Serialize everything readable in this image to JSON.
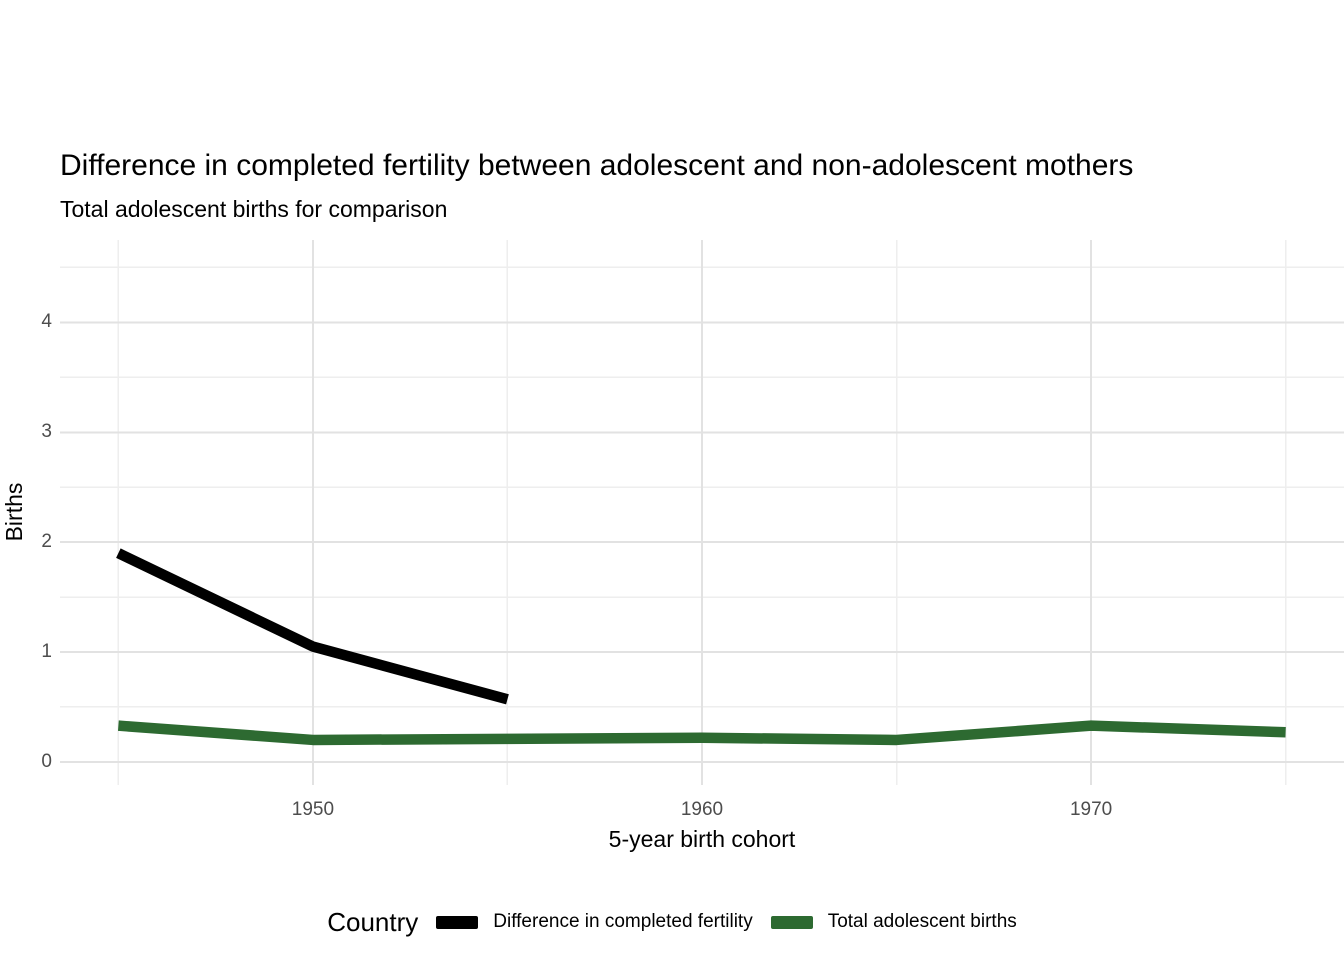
{
  "chart_data": {
    "type": "line",
    "title": "Difference in completed fertility between adolescent and non-adolescent mothers",
    "subtitle": "Total adolescent births for comparison",
    "xlabel": "5-year birth cohort",
    "ylabel": "Births",
    "legend_title": "Country",
    "legend_position": "bottom",
    "grid": "on",
    "x_ticks": [
      1950,
      1960,
      1970
    ],
    "y_ticks": [
      0,
      1,
      2,
      3,
      4
    ],
    "x_minor_gridlines": [
      1945,
      1955,
      1965,
      1975
    ],
    "y_minor_gridlines": [
      0.5,
      1.5,
      2.5,
      3.5,
      4.5
    ],
    "xlim": [
      1943.5,
      1976.5
    ],
    "ylim": [
      -0.21,
      4.75
    ],
    "series": [
      {
        "name": "Difference in completed fertility",
        "color": "#000000",
        "x": [
          1945,
          1950,
          1955
        ],
        "y": [
          1.9,
          1.05,
          0.57
        ]
      },
      {
        "name": "Total adolescent births",
        "color": "#2d6a31",
        "x": [
          1945,
          1950,
          1955,
          1960,
          1965,
          1970,
          1975
        ],
        "y": [
          0.33,
          0.2,
          0.21,
          0.22,
          0.2,
          0.33,
          0.27
        ]
      }
    ]
  },
  "colors": {
    "background": "#ffffff",
    "grid_major": "#e2e2e2",
    "grid_minor": "#eeeeee",
    "tick_label": "#4d4d4d",
    "text": "#000000"
  }
}
